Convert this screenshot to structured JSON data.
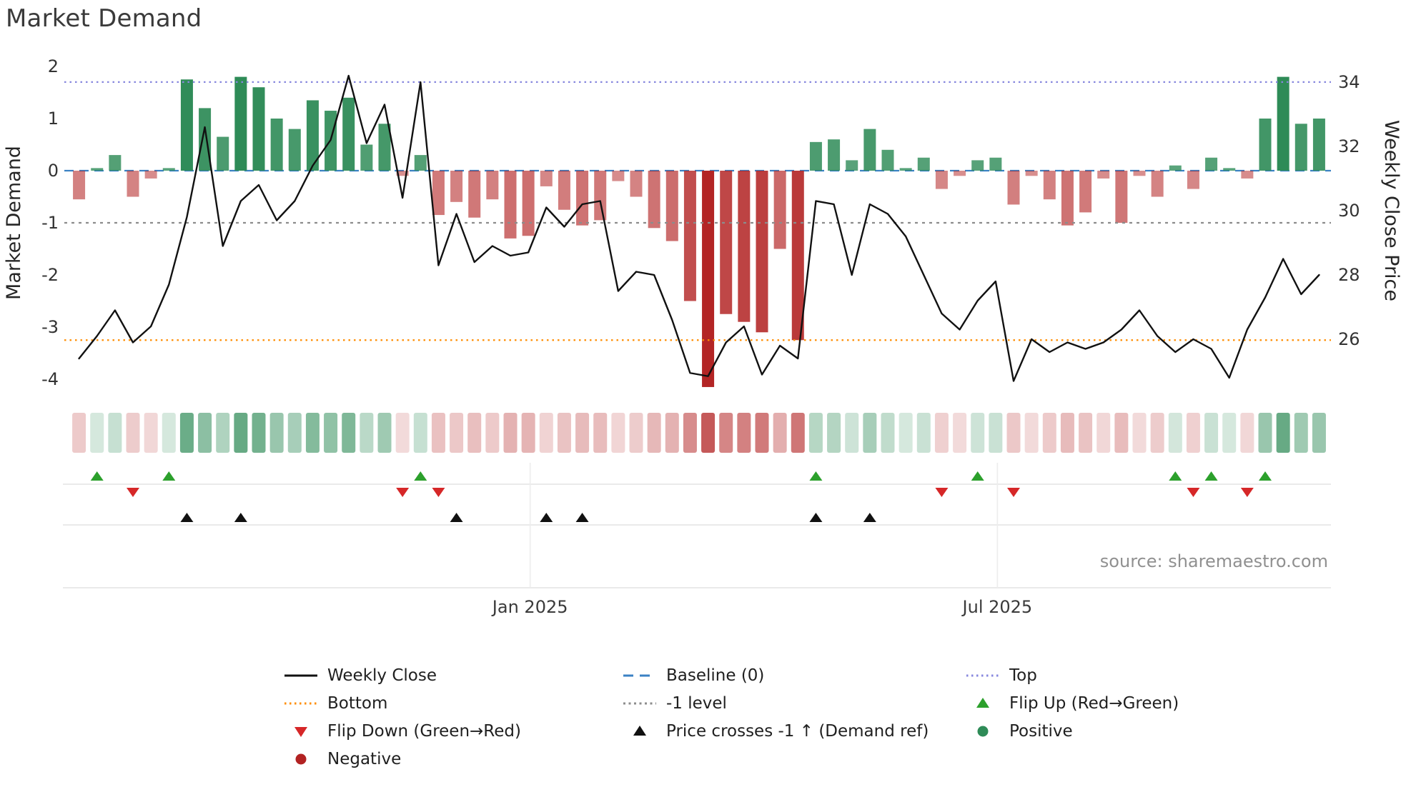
{
  "title": "Market Demand",
  "source_credit": "source: sharemaestro.com",
  "axes": {
    "left_label": "Market Demand",
    "right_label": "Weekly Close Price",
    "left_ticks": [
      2,
      1,
      0,
      -1,
      -2,
      -3,
      -4
    ],
    "right_ticks": [
      34,
      32,
      30,
      28,
      26
    ],
    "x_tick_labels": [
      "Jan 2025",
      "Jul 2025"
    ],
    "x_tick_weeks": [
      25.1,
      51.1
    ]
  },
  "colors": {
    "positive": "#2e8b57",
    "negative": "#b22222",
    "price_line": "#111111",
    "baseline": "#3b82c4",
    "top": "#8787de",
    "minus_one": "#8c8c8c",
    "bottom": "#ff8c00",
    "flip_up": "#2ca02c",
    "flip_down": "#d62728",
    "price_cross": "#111111",
    "grid": "#e3e3e3",
    "tick_text": "#333333",
    "source_text": "#909090"
  },
  "chart_data": {
    "type": "combo",
    "x_unit": "week",
    "n_weeks": 70,
    "left_ylim": [
      -4.3,
      2
    ],
    "right_ylim": [
      24.5,
      34.5
    ],
    "series": [
      {
        "name": "Market Demand",
        "type": "bar",
        "axis": "left",
        "values": [
          -0.55,
          0.05,
          0.3,
          -0.5,
          -0.15,
          0.05,
          1.75,
          1.2,
          0.65,
          1.8,
          1.6,
          1.0,
          0.8,
          1.35,
          1.15,
          1.4,
          0.5,
          0.9,
          -0.1,
          0.3,
          -0.85,
          -0.6,
          -0.9,
          -0.55,
          -1.3,
          -1.25,
          -0.3,
          -0.75,
          -1.05,
          -0.95,
          -0.2,
          -0.5,
          -1.1,
          -1.35,
          -2.5,
          -4.15,
          -2.75,
          -2.9,
          -3.1,
          -1.5,
          -3.25,
          0.55,
          0.6,
          0.2,
          0.8,
          0.4,
          0.05,
          0.25,
          -0.35,
          -0.1,
          0.2,
          0.25,
          -0.65,
          -0.1,
          -0.55,
          -1.05,
          -0.8,
          -0.15,
          -1.0,
          -0.1,
          -0.5,
          0.1,
          -0.35,
          0.25,
          0.05,
          -0.15,
          1.0,
          1.8,
          0.9,
          1.0
        ]
      },
      {
        "name": "Weekly Close",
        "type": "line",
        "axis": "right",
        "values": [
          25.4,
          26.1,
          26.9,
          25.9,
          26.4,
          27.7,
          29.8,
          32.6,
          28.9,
          30.3,
          30.8,
          29.7,
          30.3,
          31.4,
          32.2,
          34.2,
          32.1,
          33.3,
          30.4,
          34.0,
          28.3,
          29.9,
          28.4,
          28.9,
          28.6,
          28.7,
          30.1,
          29.5,
          30.2,
          30.3,
          27.5,
          28.1,
          28.0,
          26.6,
          24.95,
          24.85,
          25.9,
          26.4,
          24.9,
          25.8,
          25.4,
          30.3,
          30.2,
          28.0,
          30.2,
          29.9,
          29.2,
          28.0,
          26.8,
          26.3,
          27.2,
          27.8,
          24.7,
          26.0,
          25.6,
          25.9,
          25.7,
          25.9,
          26.3,
          26.9,
          26.1,
          25.6,
          26.0,
          25.7,
          24.8,
          26.3,
          27.3,
          28.5,
          27.4,
          28.0
        ]
      }
    ],
    "reference_lines": [
      {
        "name": "Baseline (0)",
        "value": 0,
        "axis": "left",
        "style": "dashed",
        "color": "#3b82c4"
      },
      {
        "name": "Top",
        "value": 1.7,
        "axis": "left",
        "style": "dotted",
        "color": "#8787de"
      },
      {
        "name": "-1 level",
        "value": -1,
        "axis": "left",
        "style": "dotted",
        "color": "#8c8c8c"
      },
      {
        "name": "Bottom",
        "value": -3.25,
        "axis": "left",
        "style": "dotted",
        "color": "#ff8c00"
      }
    ],
    "markers": {
      "flip_up_weeks": [
        1,
        5,
        19,
        41,
        50,
        61,
        63,
        66
      ],
      "flip_down_weeks": [
        3,
        18,
        20,
        48,
        52,
        62,
        65
      ],
      "price_cross_weeks": [
        6,
        9,
        21,
        26,
        28,
        41,
        44
      ]
    }
  },
  "legend": {
    "items": [
      {
        "label": "Weekly Close",
        "swatch": "line",
        "swatch_name": "solid-line-icon",
        "color": "#111111",
        "dash": ""
      },
      {
        "label": "Baseline (0)",
        "swatch": "line",
        "swatch_name": "dashed-line-icon",
        "color": "#3b82c4",
        "dash": "14 9"
      },
      {
        "label": "Top",
        "swatch": "line",
        "swatch_name": "dotted-line-icon",
        "color": "#8787de",
        "dash": "2.5 4.5"
      },
      {
        "label": "Bottom",
        "swatch": "line",
        "swatch_name": "dotted-line-icon",
        "color": "#ff8c00",
        "dash": "2.5 4.5"
      },
      {
        "label": "-1 level",
        "swatch": "line",
        "swatch_name": "dotted-line-icon",
        "color": "#8c8c8c",
        "dash": "3 4.5"
      },
      {
        "label": "Flip Up (Red→Green)",
        "swatch": "triangle-up",
        "swatch_name": "triangle-up-icon",
        "color": "#2ca02c",
        "dash": ""
      },
      {
        "label": "Flip Down (Green→Red)",
        "swatch": "triangle-down",
        "swatch_name": "triangle-down-icon",
        "color": "#d62728",
        "dash": ""
      },
      {
        "label": "Price crosses -1 ↑ (Demand ref)",
        "swatch": "triangle-up",
        "swatch_name": "triangle-up-icon",
        "color": "#111111",
        "dash": ""
      },
      {
        "label": "Positive",
        "swatch": "circle",
        "swatch_name": "circle-icon",
        "color": "#2e8b57",
        "dash": ""
      },
      {
        "label": "Negative",
        "swatch": "circle",
        "swatch_name": "circle-icon",
        "color": "#b22222",
        "dash": ""
      }
    ]
  }
}
